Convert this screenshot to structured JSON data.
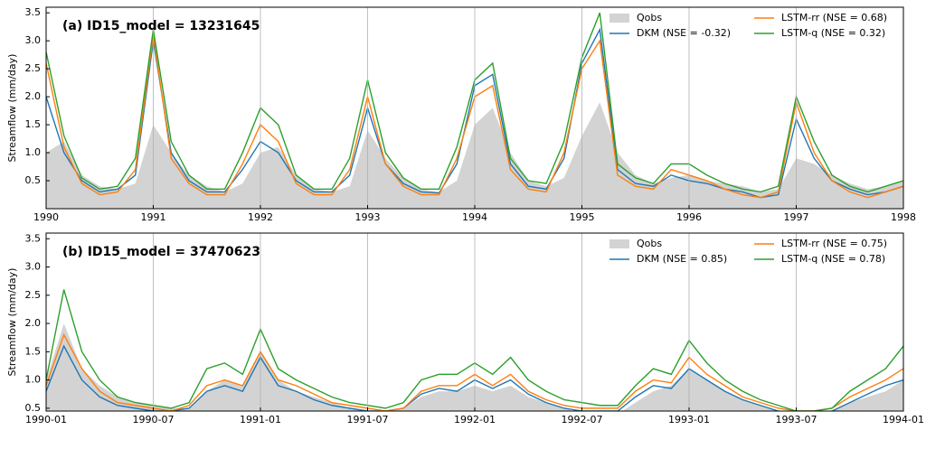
{
  "chart_data": [
    {
      "type": "line",
      "annotation": "(a) ID15_model = 13231645",
      "ylabel": "Streamflow (mm/day)",
      "xlim": [
        1990,
        1998
      ],
      "xticks": [
        1990,
        1991,
        1992,
        1993,
        1994,
        1995,
        1996,
        1997,
        1998
      ],
      "ylim": [
        0,
        3.6
      ],
      "yticks": [
        0.5,
        {
          "value": 1,
          "label": "1.0"
        },
        1.5,
        {
          "value": 2,
          "label": "2.0"
        },
        2.5,
        {
          "value": 3,
          "label": "3.0"
        },
        3.5
      ],
      "grid": "x",
      "legend": "upper right",
      "x": [
        1990,
        1990.167,
        1990.333,
        1990.5,
        1990.667,
        1990.833,
        1991,
        1991.167,
        1991.333,
        1991.5,
        1991.667,
        1991.833,
        1992,
        1992.167,
        1992.333,
        1992.5,
        1992.667,
        1992.833,
        1993,
        1993.167,
        1993.333,
        1993.5,
        1993.667,
        1993.833,
        1994,
        1994.167,
        1994.333,
        1994.5,
        1994.667,
        1994.833,
        1995,
        1995.167,
        1995.333,
        1995.5,
        1995.667,
        1995.833,
        1996,
        1996.167,
        1996.333,
        1996.5,
        1996.667,
        1996.833,
        1997,
        1997.167,
        1997.333,
        1997.5,
        1997.667,
        1997.833,
        1998
      ],
      "series": [
        {
          "name": "Qobs",
          "color": "#d3d3d3",
          "fill": true,
          "values": [
            1.0,
            1.2,
            0.6,
            0.4,
            0.35,
            0.45,
            1.5,
            1.0,
            0.6,
            0.4,
            0.3,
            0.45,
            1.0,
            1.1,
            0.6,
            0.35,
            0.3,
            0.4,
            1.4,
            0.9,
            0.55,
            0.35,
            0.3,
            0.5,
            1.5,
            1.8,
            1.0,
            0.5,
            0.4,
            0.55,
            1.3,
            1.9,
            1.0,
            0.6,
            0.45,
            0.55,
            0.6,
            0.5,
            0.45,
            0.4,
            0.3,
            0.35,
            0.9,
            0.8,
            0.6,
            0.45,
            0.35,
            0.4,
            0.5
          ]
        },
        {
          "name": "DKM (NSE = -0.32)",
          "color": "#1f77b4",
          "values": [
            2.0,
            1.0,
            0.5,
            0.3,
            0.35,
            0.6,
            3.0,
            1.0,
            0.5,
            0.3,
            0.3,
            0.7,
            1.2,
            1.0,
            0.5,
            0.3,
            0.3,
            0.6,
            1.8,
            0.8,
            0.45,
            0.3,
            0.28,
            0.8,
            2.2,
            2.4,
            0.8,
            0.4,
            0.35,
            0.9,
            2.6,
            3.2,
            0.7,
            0.45,
            0.4,
            0.6,
            0.5,
            0.45,
            0.35,
            0.3,
            0.2,
            0.25,
            1.6,
            0.9,
            0.5,
            0.35,
            0.25,
            0.3,
            0.4
          ]
        },
        {
          "name": "LSTM-rr (NSE = 0.68)",
          "color": "#ff7f0e",
          "values": [
            2.6,
            1.1,
            0.45,
            0.25,
            0.3,
            0.7,
            3.1,
            0.9,
            0.45,
            0.25,
            0.25,
            0.8,
            1.5,
            1.2,
            0.45,
            0.25,
            0.25,
            0.7,
            2.0,
            0.8,
            0.4,
            0.25,
            0.25,
            0.9,
            2.0,
            2.2,
            0.7,
            0.35,
            0.3,
            1.0,
            2.5,
            3.0,
            0.6,
            0.4,
            0.35,
            0.7,
            0.6,
            0.5,
            0.35,
            0.25,
            0.2,
            0.3,
            1.9,
            1.0,
            0.5,
            0.3,
            0.2,
            0.3,
            0.4
          ]
        },
        {
          "name": "LSTM-q (NSE = 0.32)",
          "color": "#2ca02c",
          "values": [
            2.8,
            1.3,
            0.55,
            0.35,
            0.4,
            0.9,
            3.2,
            1.2,
            0.6,
            0.35,
            0.35,
            1.0,
            1.8,
            1.5,
            0.6,
            0.35,
            0.35,
            0.9,
            2.3,
            1.0,
            0.55,
            0.35,
            0.35,
            1.1,
            2.3,
            2.6,
            0.9,
            0.5,
            0.45,
            1.2,
            2.7,
            3.5,
            0.8,
            0.55,
            0.45,
            0.8,
            0.8,
            0.6,
            0.45,
            0.35,
            0.3,
            0.4,
            2.0,
            1.2,
            0.6,
            0.4,
            0.3,
            0.4,
            0.5
          ]
        }
      ]
    },
    {
      "type": "line",
      "annotation": "(b) ID15_model = 37470623",
      "ylabel": "Streamflow (mm/day)",
      "xlim": [
        1990,
        1994
      ],
      "xticks": [
        {
          "value": 1990,
          "label": "1990-01"
        },
        {
          "value": 1990.5,
          "label": "1990-07"
        },
        {
          "value": 1991,
          "label": "1991-01"
        },
        {
          "value": 1991.5,
          "label": "1991-07"
        },
        {
          "value": 1992,
          "label": "1992-01"
        },
        {
          "value": 1992.5,
          "label": "1992-07"
        },
        {
          "value": 1993,
          "label": "1993-01"
        },
        {
          "value": 1993.5,
          "label": "1993-07"
        },
        {
          "value": 1994,
          "label": "1994-01"
        }
      ],
      "ylim": [
        0.45,
        3.6
      ],
      "yticks": [
        0.5,
        {
          "value": 1,
          "label": "1.0"
        },
        1.5,
        {
          "value": 2,
          "label": "2.0"
        },
        2.5,
        {
          "value": 3,
          "label": "3.0"
        },
        3.5
      ],
      "grid": "x",
      "legend": "upper right",
      "x": [
        1990,
        1990.083,
        1990.167,
        1990.25,
        1990.333,
        1990.417,
        1990.5,
        1990.583,
        1990.667,
        1990.75,
        1990.833,
        1990.917,
        1991,
        1991.083,
        1991.167,
        1991.25,
        1991.333,
        1991.417,
        1991.5,
        1991.583,
        1991.667,
        1991.75,
        1991.833,
        1991.917,
        1992,
        1992.083,
        1992.167,
        1992.25,
        1992.333,
        1992.417,
        1992.5,
        1992.583,
        1992.667,
        1992.75,
        1992.833,
        1992.917,
        1993,
        1993.083,
        1993.167,
        1993.25,
        1993.333,
        1993.417,
        1993.5,
        1993.583,
        1993.667,
        1993.75,
        1993.833,
        1993.917,
        1994
      ],
      "series": [
        {
          "name": "Qobs",
          "color": "#d3d3d3",
          "fill": true,
          "values": [
            1.0,
            2.0,
            1.2,
            0.9,
            0.7,
            0.6,
            0.55,
            0.5,
            0.5,
            0.8,
            1.0,
            0.9,
            1.5,
            1.0,
            0.8,
            0.7,
            0.6,
            0.5,
            0.45,
            0.45,
            0.5,
            0.7,
            0.8,
            0.8,
            0.9,
            0.8,
            0.9,
            0.7,
            0.6,
            0.5,
            0.4,
            0.35,
            0.4,
            0.6,
            0.8,
            0.9,
            1.2,
            1.0,
            0.8,
            0.65,
            0.55,
            0.45,
            0.4,
            0.4,
            0.45,
            0.6,
            0.7,
            0.8,
            1.0
          ]
        },
        {
          "name": "DKM (NSE = 0.85)",
          "color": "#1f77b4",
          "values": [
            0.8,
            1.6,
            1.0,
            0.7,
            0.55,
            0.5,
            0.45,
            0.45,
            0.5,
            0.8,
            0.9,
            0.8,
            1.4,
            0.9,
            0.8,
            0.65,
            0.55,
            0.5,
            0.45,
            0.45,
            0.5,
            0.75,
            0.85,
            0.8,
            1.0,
            0.85,
            1.0,
            0.75,
            0.6,
            0.5,
            0.45,
            0.45,
            0.45,
            0.7,
            0.9,
            0.85,
            1.2,
            1.0,
            0.8,
            0.65,
            0.55,
            0.45,
            0.4,
            0.4,
            0.45,
            0.6,
            0.75,
            0.9,
            1.0
          ]
        },
        {
          "name": "LSTM-rr (NSE = 0.75)",
          "color": "#ff7f0e",
          "values": [
            0.9,
            1.8,
            1.2,
            0.8,
            0.6,
            0.55,
            0.5,
            0.45,
            0.55,
            0.9,
            1.0,
            0.9,
            1.5,
            1.0,
            0.9,
            0.75,
            0.6,
            0.55,
            0.5,
            0.45,
            0.5,
            0.8,
            0.9,
            0.9,
            1.1,
            0.9,
            1.1,
            0.8,
            0.65,
            0.55,
            0.5,
            0.5,
            0.5,
            0.8,
            1.0,
            0.95,
            1.4,
            1.1,
            0.9,
            0.7,
            0.6,
            0.5,
            0.45,
            0.45,
            0.5,
            0.7,
            0.85,
            1.0,
            1.2
          ]
        },
        {
          "name": "LSTM-q (NSE = 0.78)",
          "color": "#2ca02c",
          "values": [
            1.0,
            2.6,
            1.5,
            1.0,
            0.7,
            0.6,
            0.55,
            0.5,
            0.6,
            1.2,
            1.3,
            1.1,
            1.9,
            1.2,
            1.0,
            0.85,
            0.7,
            0.6,
            0.55,
            0.5,
            0.6,
            1.0,
            1.1,
            1.1,
            1.3,
            1.1,
            1.4,
            1.0,
            0.8,
            0.65,
            0.6,
            0.55,
            0.55,
            0.9,
            1.2,
            1.1,
            1.7,
            1.3,
            1.0,
            0.8,
            0.65,
            0.55,
            0.45,
            0.45,
            0.5,
            0.8,
            1.0,
            1.2,
            1.6
          ]
        }
      ]
    }
  ]
}
